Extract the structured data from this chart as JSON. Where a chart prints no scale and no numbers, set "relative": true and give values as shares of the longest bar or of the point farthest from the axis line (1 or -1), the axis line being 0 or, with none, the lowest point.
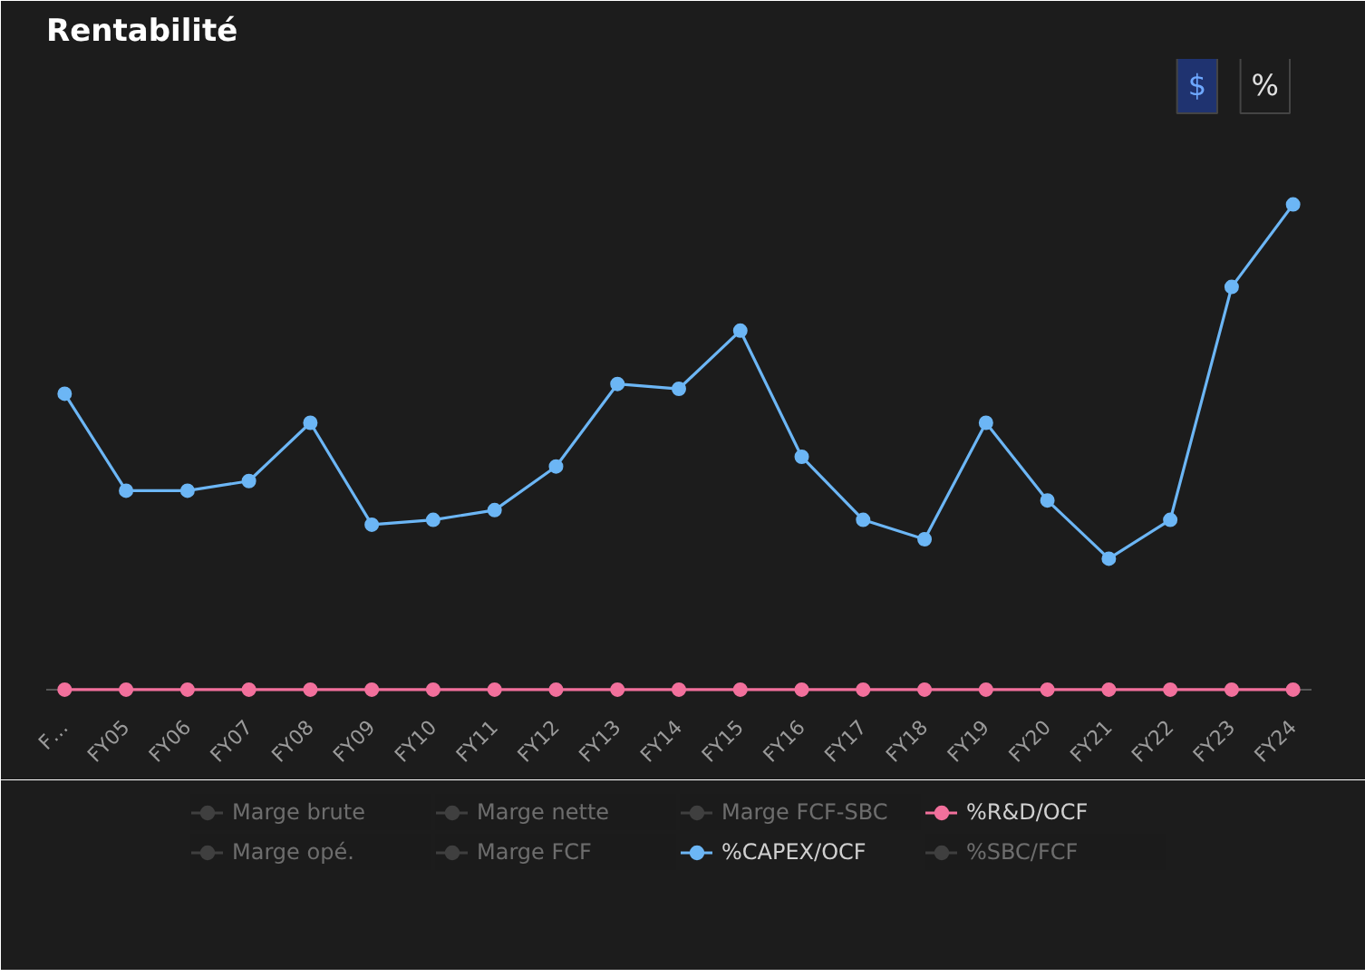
{
  "chart_data": {
    "type": "line",
    "title": "Rentabilité",
    "relative": true,
    "marker": "circle",
    "line_style": "solid",
    "grid": false,
    "legend": "bottom",
    "annotations": [
      "$",
      "%"
    ],
    "categories": [
      "F…",
      "FY05",
      "FY06",
      "FY07",
      "FY08",
      "FY09",
      "FY10",
      "FY11",
      "FY12",
      "FY13",
      "FY14",
      "FY15",
      "FY16",
      "FY17",
      "FY18",
      "FY19",
      "FY20",
      "FY21",
      "FY22",
      "FY23",
      "FY24"
    ],
    "series": [
      {
        "name": "Marge brute",
        "color": "#6b6b6b",
        "values": [
          null,
          null,
          null,
          null,
          null,
          null,
          null,
          null,
          null,
          null,
          null,
          null,
          null,
          null,
          null,
          null,
          null,
          null,
          null,
          null,
          null
        ]
      },
      {
        "name": "Marge opé.",
        "color": "#6b6b6b",
        "values": [
          null,
          null,
          null,
          null,
          null,
          null,
          null,
          null,
          null,
          null,
          null,
          null,
          null,
          null,
          null,
          null,
          null,
          null,
          null,
          null,
          null
        ]
      },
      {
        "name": "Marge nette",
        "color": "#6b6b6b",
        "values": [
          null,
          null,
          null,
          null,
          null,
          null,
          null,
          null,
          null,
          null,
          null,
          null,
          null,
          null,
          null,
          null,
          null,
          null,
          null,
          null,
          null
        ]
      },
      {
        "name": "Marge FCF",
        "color": "#6b6b6b",
        "values": [
          null,
          null,
          null,
          null,
          null,
          null,
          null,
          null,
          null,
          null,
          null,
          null,
          null,
          null,
          null,
          null,
          null,
          null,
          null,
          null,
          null
        ]
      },
      {
        "name": "Marge FCF-SBC",
        "color": "#6b6b6b",
        "values": [
          null,
          null,
          null,
          null,
          null,
          null,
          null,
          null,
          null,
          null,
          null,
          null,
          null,
          null,
          null,
          null,
          null,
          null,
          null,
          null,
          null
        ]
      },
      {
        "name": "%CAPEX/OCF",
        "color": "#6cb6f5",
        "values": [
          0.61,
          0.41,
          0.41,
          0.43,
          0.55,
          0.34,
          0.35,
          0.37,
          0.46,
          0.63,
          0.62,
          0.74,
          0.48,
          0.35,
          0.31,
          0.55,
          0.39,
          0.27,
          0.35,
          0.83,
          1
        ]
      },
      {
        "name": "%R&D/OCF",
        "color": "#f2709c",
        "values": [
          0,
          0,
          0,
          0,
          0,
          0,
          0,
          0,
          0,
          0,
          0,
          0,
          0,
          0,
          0,
          0,
          0,
          0,
          0,
          0,
          0
        ]
      },
      {
        "name": "%SBC/FCF",
        "color": "#6b6b6b",
        "values": [
          null,
          null,
          null,
          null,
          null,
          null,
          null,
          null,
          null,
          null,
          null,
          null,
          null,
          null,
          null,
          null,
          null,
          null,
          null,
          null,
          null
        ]
      }
    ]
  }
}
